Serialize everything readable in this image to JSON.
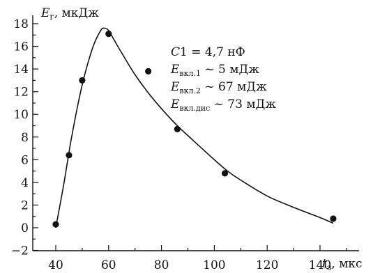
{
  "chart_data": {
    "type": "scatter",
    "y_axis_title": {
      "symbol": "E",
      "sub": "г",
      "unit": ", мкДж"
    },
    "x_axis_title": {
      "symbol": "t",
      "sub": "з",
      "unit": ", мкс"
    },
    "xlim": [
      35,
      152
    ],
    "ylim": [
      -2,
      18.6
    ],
    "x_ticks": [
      40,
      60,
      80,
      100,
      120,
      140
    ],
    "x_tick_labels": [
      "40",
      "60",
      "80",
      "100",
      "120",
      "140"
    ],
    "x_minor_ticks": [
      50,
      70,
      90,
      110,
      130,
      150
    ],
    "y_ticks": [
      -2,
      0,
      2,
      4,
      6,
      8,
      10,
      12,
      14,
      16,
      18
    ],
    "y_tick_labels": [
      "−2",
      "0",
      "2",
      "4",
      "6",
      "8",
      "10",
      "12",
      "14",
      "16",
      "18"
    ],
    "y_minor_ticks": [
      -1,
      1,
      3,
      5,
      7,
      9,
      11,
      13,
      15,
      17
    ],
    "series": [
      {
        "kind": "points",
        "x": [
          40,
          45,
          50,
          60,
          75,
          86,
          104,
          145
        ],
        "y": [
          0.3,
          6.4,
          13.0,
          17.1,
          13.8,
          8.7,
          4.8,
          0.8
        ]
      },
      {
        "kind": "fit_line",
        "x": [
          40,
          43,
          46,
          50,
          54,
          57,
          58.5,
          60,
          62,
          65,
          70,
          75,
          80,
          86,
          92,
          100,
          105,
          110,
          120,
          130,
          140,
          145
        ],
        "y": [
          0.0,
          3.8,
          8.0,
          12.6,
          15.9,
          17.4,
          17.6,
          17.4,
          16.6,
          15.4,
          13.5,
          11.9,
          10.5,
          9.0,
          7.7,
          6.0,
          5.0,
          4.2,
          2.8,
          1.8,
          0.9,
          0.4
        ]
      }
    ],
    "annotations": [
      {
        "parts": [
          {
            "t": "C",
            "style": "sym"
          },
          {
            "t": "1 = 4,7 нФ"
          }
        ]
      },
      {
        "parts": [
          {
            "t": "E",
            "style": "sym"
          },
          {
            "t": "вкл.1",
            "style": "sub"
          },
          {
            "t": " ~ 5 мДж"
          }
        ]
      },
      {
        "parts": [
          {
            "t": "E",
            "style": "sym"
          },
          {
            "t": "вкл.2",
            "style": "sub"
          },
          {
            "t": " ~ 67 мДж"
          }
        ]
      },
      {
        "parts": [
          {
            "t": "E",
            "style": "sym"
          },
          {
            "t": "вкл.дис",
            "style": "sub"
          },
          {
            "t": " ~ 73 мДж"
          }
        ]
      }
    ]
  }
}
